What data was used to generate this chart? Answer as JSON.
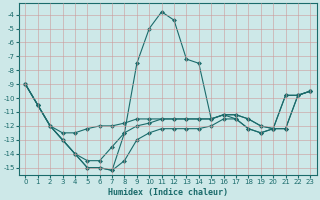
{
  "xlabel": "Humidex (Indice chaleur)",
  "background_color": "#cde8e8",
  "grid_color": "#aaaaaa",
  "line_color": "#1a6b6b",
  "xlim": [
    -0.5,
    23.5
  ],
  "ylim": [
    -15.5,
    -3.2
  ],
  "yticks": [
    -4,
    -5,
    -6,
    -7,
    -8,
    -9,
    -10,
    -11,
    -12,
    -13,
    -14,
    -15
  ],
  "xticks": [
    0,
    1,
    2,
    3,
    4,
    5,
    6,
    7,
    8,
    9,
    10,
    11,
    12,
    13,
    14,
    15,
    16,
    17,
    18,
    19,
    20,
    21,
    22,
    23
  ],
  "lines": [
    {
      "x": [
        0,
        1,
        2,
        3,
        4,
        5,
        6,
        7,
        8,
        9,
        10,
        11,
        12,
        13,
        14,
        15,
        16,
        17,
        18,
        19,
        20,
        21,
        22,
        23
      ],
      "y": [
        -9.0,
        -10.5,
        -12.0,
        -13.0,
        -14.0,
        -15.0,
        -15.0,
        -15.2,
        -12.5,
        -7.5,
        -5.0,
        -3.8,
        -4.4,
        -7.2,
        -7.5,
        -11.5,
        -11.2,
        -11.5,
        -12.2,
        -12.5,
        -12.2,
        -9.8,
        -9.8,
        -9.5
      ]
    },
    {
      "x": [
        0,
        1,
        2,
        3,
        4,
        5,
        6,
        7,
        8,
        9,
        10,
        11,
        12,
        13,
        14,
        15,
        16,
        17,
        18,
        19,
        20,
        21,
        22,
        23
      ],
      "y": [
        -9.0,
        -10.5,
        -12.0,
        -13.0,
        -14.0,
        -15.0,
        -15.0,
        -15.2,
        -14.5,
        -13.0,
        -12.5,
        -12.2,
        -12.2,
        -12.2,
        -12.2,
        -12.0,
        -11.5,
        -11.5,
        -12.2,
        -12.5,
        -12.2,
        -9.8,
        -9.8,
        -9.5
      ]
    },
    {
      "x": [
        0,
        1,
        2,
        3,
        4,
        5,
        6,
        7,
        8,
        9,
        10,
        11,
        12,
        13,
        14,
        15,
        16,
        17,
        18,
        19,
        20,
        21,
        22,
        23
      ],
      "y": [
        -9.0,
        -10.5,
        -12.0,
        -12.5,
        -12.5,
        -12.2,
        -12.0,
        -12.0,
        -11.8,
        -11.5,
        -11.5,
        -11.5,
        -11.5,
        -11.5,
        -11.5,
        -11.5,
        -11.2,
        -11.2,
        -11.5,
        -12.0,
        -12.2,
        -12.2,
        -9.8,
        -9.5
      ]
    },
    {
      "x": [
        0,
        1,
        2,
        3,
        4,
        5,
        6,
        7,
        8,
        9,
        10,
        11,
        12,
        13,
        14,
        15,
        16,
        17,
        18,
        19,
        20,
        21,
        22,
        23
      ],
      "y": [
        -9.0,
        -10.5,
        -12.0,
        -13.0,
        -14.0,
        -14.5,
        -14.5,
        -13.5,
        -12.5,
        -12.0,
        -11.8,
        -11.5,
        -11.5,
        -11.5,
        -11.5,
        -11.5,
        -11.2,
        -11.2,
        -11.5,
        -12.0,
        -12.2,
        -12.2,
        -9.8,
        -9.5
      ]
    }
  ]
}
